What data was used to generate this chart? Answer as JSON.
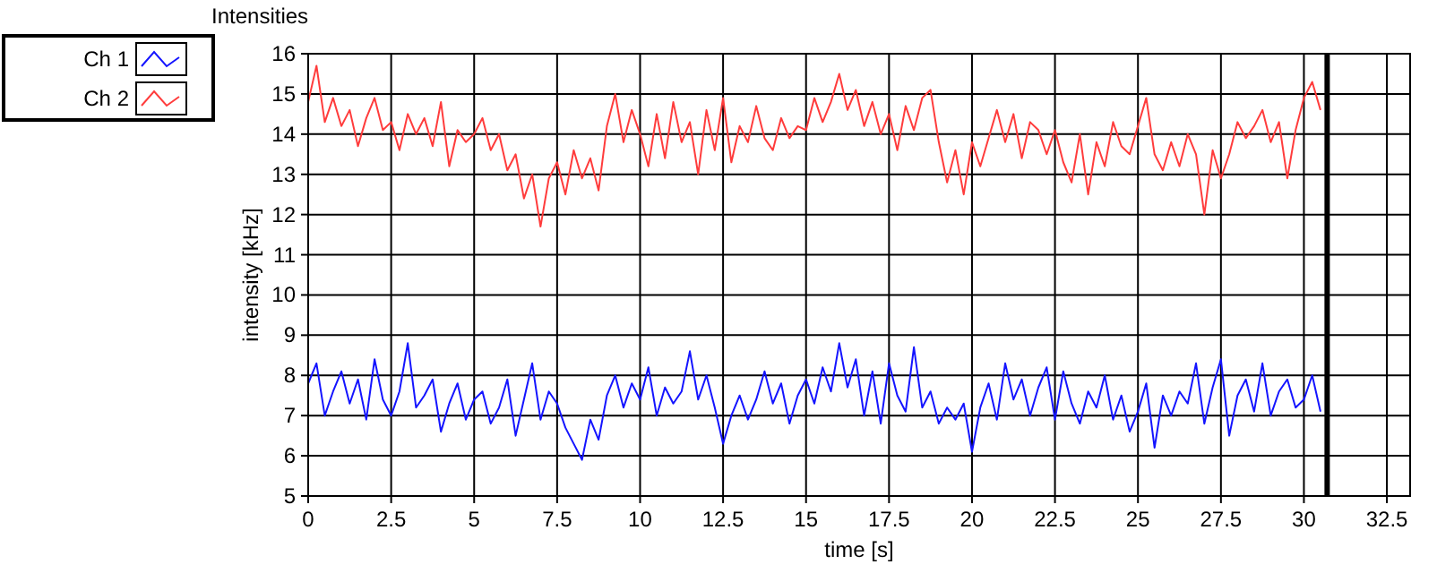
{
  "chart_data": {
    "type": "line",
    "title": "Intensities",
    "xlabel": "time [s]",
    "ylabel": "intensity [kHz]",
    "x": [
      0,
      0.25,
      0.5,
      0.75,
      1,
      1.25,
      1.5,
      1.75,
      2,
      2.25,
      2.5,
      2.75,
      3,
      3.25,
      3.5,
      3.75,
      4,
      4.25,
      4.5,
      4.75,
      5,
      5.25,
      5.5,
      5.75,
      6,
      6.25,
      6.5,
      6.75,
      7,
      7.25,
      7.5,
      7.75,
      8,
      8.25,
      8.5,
      8.75,
      9,
      9.25,
      9.5,
      9.75,
      10,
      10.25,
      10.5,
      10.75,
      11,
      11.25,
      11.5,
      11.75,
      12,
      12.25,
      12.5,
      12.75,
      13,
      13.25,
      13.5,
      13.75,
      14,
      14.25,
      14.5,
      14.75,
      15,
      15.25,
      15.5,
      15.75,
      16,
      16.25,
      16.5,
      16.75,
      17,
      17.25,
      17.5,
      17.75,
      18,
      18.25,
      18.5,
      18.75,
      19,
      19.25,
      19.5,
      19.75,
      20,
      20.25,
      20.5,
      20.75,
      21,
      21.25,
      21.5,
      21.75,
      22,
      22.25,
      22.5,
      22.75,
      23,
      23.25,
      23.5,
      23.75,
      24,
      24.25,
      24.5,
      24.75,
      25,
      25.25,
      25.5,
      25.75,
      26,
      26.25,
      26.5,
      26.75,
      27,
      27.25,
      27.5,
      27.75,
      28,
      28.25,
      28.5,
      28.75,
      29,
      29.25,
      29.5,
      29.75,
      30,
      30.25,
      30.5
    ],
    "series": [
      {
        "name": "Ch 1",
        "color": "#1414ff",
        "values": [
          7.8,
          8.3,
          7.0,
          7.6,
          8.1,
          7.3,
          7.9,
          6.9,
          8.4,
          7.4,
          7.0,
          7.6,
          8.8,
          7.2,
          7.5,
          7.9,
          6.6,
          7.3,
          7.8,
          6.9,
          7.4,
          7.6,
          6.8,
          7.2,
          7.9,
          6.5,
          7.4,
          8.3,
          6.9,
          7.6,
          7.3,
          6.7,
          6.3,
          5.9,
          6.9,
          6.4,
          7.5,
          8.0,
          7.2,
          7.8,
          7.4,
          8.2,
          7.0,
          7.7,
          7.3,
          7.6,
          8.6,
          7.4,
          8.0,
          7.2,
          6.3,
          7.0,
          7.5,
          6.9,
          7.4,
          8.1,
          7.3,
          7.8,
          6.8,
          7.5,
          7.9,
          7.3,
          8.2,
          7.6,
          8.8,
          7.7,
          8.4,
          7.0,
          8.1,
          6.8,
          8.3,
          7.5,
          7.1,
          8.7,
          7.2,
          7.6,
          6.8,
          7.2,
          6.9,
          7.3,
          6.1,
          7.2,
          7.8,
          6.9,
          8.3,
          7.4,
          7.9,
          7.0,
          7.7,
          8.2,
          6.9,
          8.1,
          7.3,
          6.8,
          7.6,
          7.2,
          8.0,
          6.9,
          7.5,
          6.6,
          7.1,
          7.8,
          6.2,
          7.5,
          7.0,
          7.6,
          7.3,
          8.3,
          6.8,
          7.7,
          8.4,
          6.5,
          7.5,
          7.9,
          7.1,
          8.3,
          7.0,
          7.6,
          7.9,
          7.2,
          7.4,
          8.0,
          7.1
        ]
      },
      {
        "name": "Ch 2",
        "color": "#ff3c3c",
        "values": [
          14.8,
          15.7,
          14.3,
          14.9,
          14.2,
          14.6,
          13.7,
          14.4,
          14.9,
          14.1,
          14.3,
          13.6,
          14.5,
          14.0,
          14.4,
          13.7,
          14.8,
          13.2,
          14.1,
          13.8,
          14.0,
          14.4,
          13.6,
          14.0,
          13.1,
          13.5,
          12.4,
          13.0,
          11.7,
          12.9,
          13.3,
          12.5,
          13.6,
          12.9,
          13.4,
          12.6,
          14.2,
          15.0,
          13.8,
          14.6,
          14.0,
          13.2,
          14.5,
          13.4,
          14.8,
          13.8,
          14.3,
          13.0,
          14.6,
          13.6,
          14.9,
          13.3,
          14.2,
          13.8,
          14.7,
          13.9,
          13.6,
          14.4,
          13.9,
          14.2,
          14.1,
          14.9,
          14.3,
          14.8,
          15.5,
          14.6,
          15.1,
          14.2,
          14.8,
          14.0,
          14.5,
          13.6,
          14.7,
          14.1,
          14.9,
          15.1,
          13.8,
          12.8,
          13.6,
          12.5,
          13.8,
          13.2,
          13.9,
          14.6,
          13.8,
          14.5,
          13.4,
          14.3,
          14.1,
          13.5,
          14.1,
          13.3,
          12.8,
          14.0,
          12.5,
          13.8,
          13.2,
          14.3,
          13.7,
          13.5,
          14.2,
          14.9,
          13.5,
          13.1,
          13.8,
          13.2,
          14.0,
          13.5,
          12.0,
          13.6,
          12.9,
          13.5,
          14.3,
          13.9,
          14.2,
          14.6,
          13.8,
          14.3,
          12.9,
          14.1,
          14.9,
          15.3,
          14.6
        ]
      }
    ],
    "xlim": [
      0,
      33.2
    ],
    "xticks": [
      0,
      2.5,
      5,
      7.5,
      10,
      12.5,
      15,
      17.5,
      20,
      22.5,
      25,
      27.5,
      30,
      32.5
    ],
    "ylim": [
      5,
      16
    ],
    "yticks": [
      5,
      6,
      7,
      8,
      9,
      10,
      11,
      12,
      13,
      14,
      15,
      16
    ],
    "ref_lines": [
      {
        "axis": "x",
        "value": 30.7,
        "color": "#000000"
      }
    ],
    "grid": true,
    "legend": "top left",
    "marker": "none",
    "line_style": "solid"
  }
}
